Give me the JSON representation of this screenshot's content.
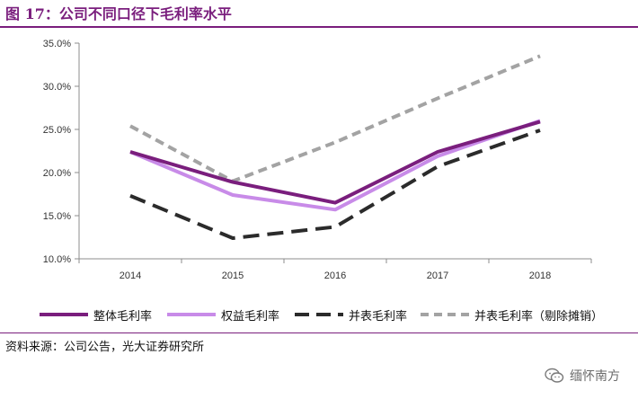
{
  "figure": {
    "title": "图 17：公司不同口径下毛利率水平",
    "source": "资料来源：公司公告，光大证券研究所",
    "watermark": "缅怀南方"
  },
  "colors": {
    "accent": "#7a1e7d",
    "series": [
      "#7a1e7d",
      "#c88be8",
      "#2b2b2b",
      "#a3a3a3"
    ]
  },
  "icons": {
    "watermark": "wechat-icon"
  },
  "chart_data": {
    "type": "line",
    "x": [
      "2014",
      "2015",
      "2016",
      "2017",
      "2018"
    ],
    "ylim": [
      10.0,
      35.0
    ],
    "yticks": [
      10.0,
      15.0,
      20.0,
      25.0,
      30.0,
      35.0
    ],
    "ytick_labels": [
      "10.0%",
      "15.0%",
      "20.0%",
      "25.0%",
      "30.0%",
      "35.0%"
    ],
    "grid": false,
    "legend_position": "bottom",
    "series": [
      {
        "name": "整体毛利率",
        "values": [
          22.4,
          18.9,
          16.5,
          22.4,
          25.9
        ],
        "style": "solid"
      },
      {
        "name": "权益毛利率",
        "values": [
          22.4,
          17.4,
          15.7,
          21.9,
          26.0
        ],
        "style": "solid"
      },
      {
        "name": "并表毛利率",
        "values": [
          17.3,
          12.4,
          13.7,
          20.7,
          24.9
        ],
        "style": "dashed"
      },
      {
        "name": "并表毛利率（剔除摊销）",
        "values": [
          25.4,
          19.0,
          23.5,
          28.6,
          33.5
        ],
        "style": "dashed-light"
      }
    ]
  }
}
